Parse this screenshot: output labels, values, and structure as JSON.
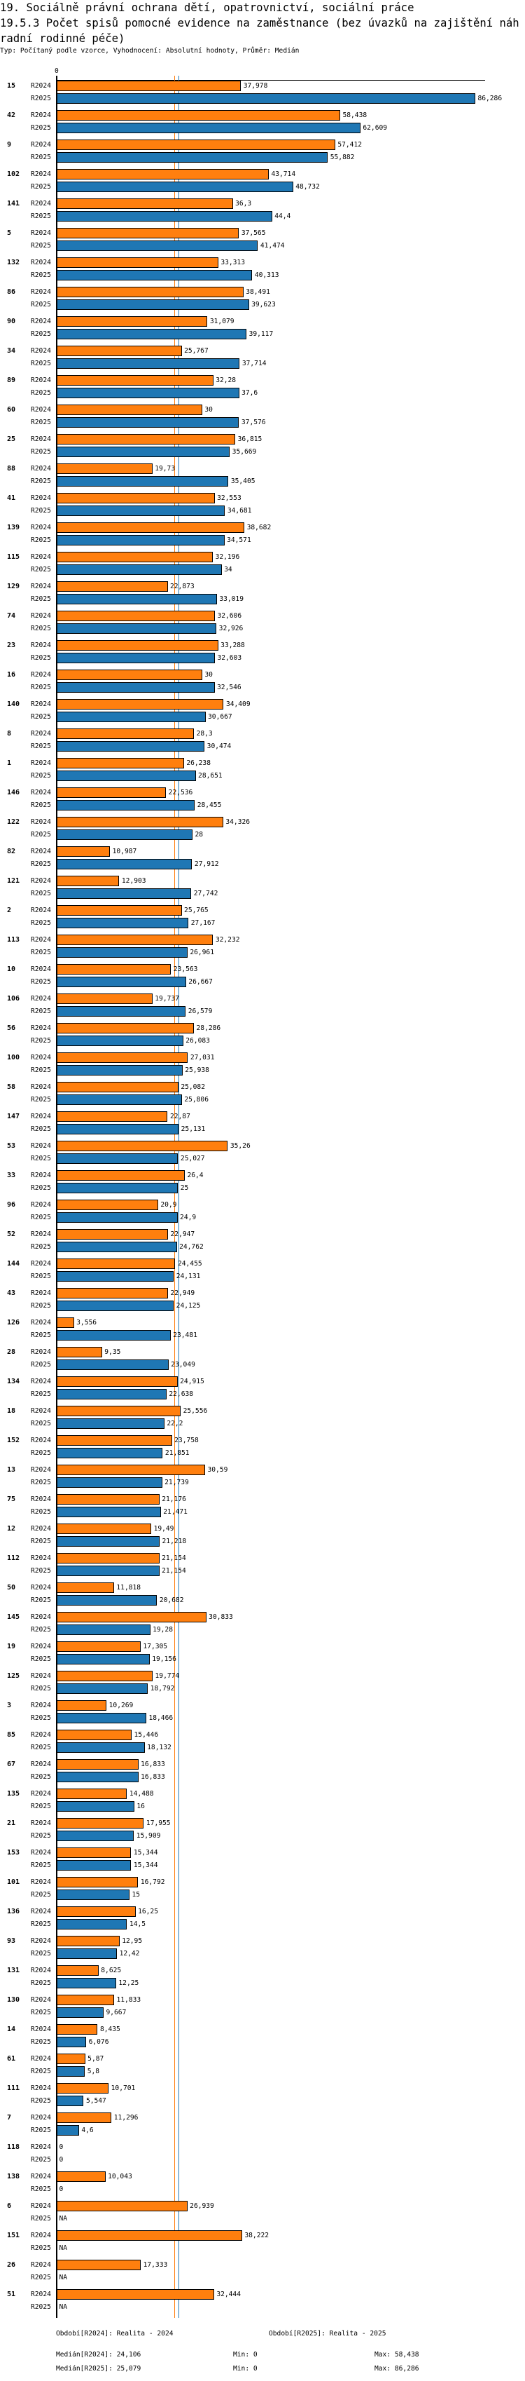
{
  "header": {
    "title": "19. Sociálně právní ochrana dětí, opatrovnictví, sociální práce",
    "subtitle_title": "19.5.3 Počet spisů pomocné evidence na zaměstnance  (bez úvazků na zajištění náhradní rodinné péče)",
    "info": "Typ: Počítaný podle vzorce, Vyhodnocení: Absolutní hodnoty, Průměr: Medián"
  },
  "chart_data": {
    "type": "bar",
    "orientation": "horizontal",
    "title": "19.5.3 Počet spisů pomocné evidence na zaměstnance",
    "axis_zero_label": "0",
    "xlim": [
      0,
      86.286
    ],
    "series": [
      {
        "name": "R2024",
        "color": "#ff7f0e",
        "median": 24.106
      },
      {
        "name": "R2025",
        "color": "#1f77b4",
        "median": 25.079
      }
    ],
    "categories": [
      "15",
      "42",
      "9",
      "102",
      "141",
      "5",
      "132",
      "86",
      "90",
      "34",
      "89",
      "60",
      "25",
      "88",
      "41",
      "139",
      "115",
      "129",
      "74",
      "23",
      "16",
      "140",
      "8",
      "1",
      "146",
      "122",
      "82",
      "121",
      "2",
      "113",
      "10",
      "106",
      "56",
      "100",
      "58",
      "147",
      "53",
      "33",
      "96",
      "52",
      "144",
      "43",
      "126",
      "28",
      "134",
      "18",
      "152",
      "13",
      "75",
      "12",
      "112",
      "50",
      "145",
      "19",
      "125",
      "3",
      "85",
      "67",
      "135",
      "21",
      "153",
      "101",
      "136",
      "93",
      "131",
      "130",
      "14",
      "61",
      "111",
      "7",
      "118",
      "138",
      "6",
      "151",
      "26",
      "51"
    ],
    "r2024": [
      37.978,
      58.438,
      57.412,
      43.714,
      36.3,
      37.565,
      33.313,
      38.491,
      31.079,
      25.767,
      32.28,
      30,
      36.815,
      19.73,
      32.553,
      38.682,
      32.196,
      22.873,
      32.606,
      33.288,
      30,
      34.409,
      28.3,
      26.238,
      22.536,
      34.326,
      10.987,
      12.903,
      25.765,
      32.232,
      23.563,
      19.737,
      28.286,
      27.031,
      25.082,
      22.87,
      35.26,
      26.4,
      20.9,
      22.947,
      24.455,
      22.949,
      3.556,
      9.35,
      24.915,
      25.556,
      23.758,
      30.59,
      21.176,
      19.49,
      21.154,
      11.818,
      30.833,
      17.305,
      19.774,
      10.269,
      15.446,
      16.833,
      14.488,
      17.955,
      15.344,
      16.792,
      16.25,
      12.95,
      8.625,
      11.833,
      8.435,
      5.87,
      10.701,
      11.296,
      0,
      10.043,
      26.939,
      38.222,
      17.333,
      32.444
    ],
    "r2025": [
      86.286,
      62.609,
      55.882,
      48.732,
      44.4,
      41.474,
      40.313,
      39.623,
      39.117,
      37.714,
      37.6,
      37.576,
      35.669,
      35.405,
      34.681,
      34.571,
      34,
      33.019,
      32.926,
      32.603,
      32.546,
      30.667,
      30.474,
      28.651,
      28.455,
      28,
      27.912,
      27.742,
      27.167,
      26.961,
      26.667,
      26.579,
      26.083,
      25.938,
      25.806,
      25.131,
      25.027,
      25,
      24.9,
      24.762,
      24.131,
      24.125,
      23.481,
      23.049,
      22.638,
      22.2,
      21.851,
      21.739,
      21.471,
      21.218,
      21.154,
      20.682,
      19.28,
      19.156,
      18.792,
      18.466,
      18.132,
      16.833,
      16,
      15.909,
      15.344,
      15,
      14.5,
      12.42,
      12.25,
      9.667,
      6.076,
      5.8,
      5.547,
      4.6,
      0,
      0,
      null,
      null,
      null,
      null
    ],
    "na_label": "NA"
  },
  "footer": {
    "period_2024": "Období[R2024]: Realita - 2024",
    "period_2025": "Období[R2025]: Realita - 2025",
    "median_2024": "Medián[R2024]: 24,106",
    "median_2025": "Medián[R2025]: 25,079",
    "min_2024": "Min: 0",
    "min_2025": "Min: 0",
    "max_2024": "Max: 58,438",
    "max_2025": "Max: 86,286"
  }
}
